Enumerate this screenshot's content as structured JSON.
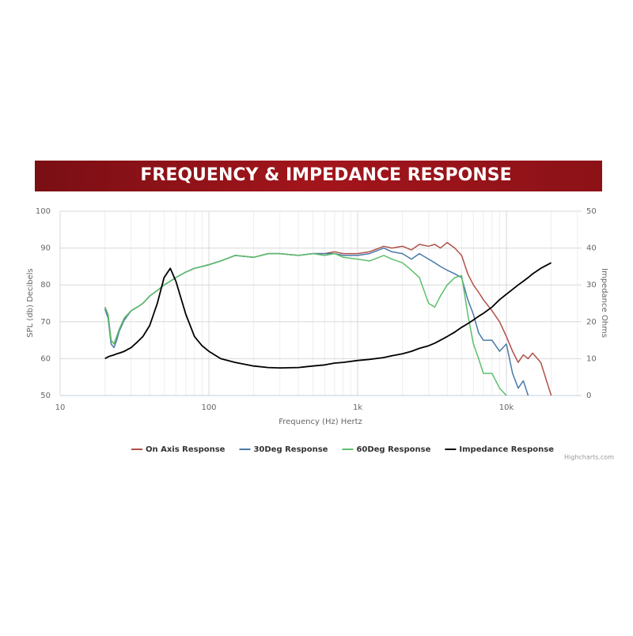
{
  "chart_data": {
    "type": "line",
    "title": "FREQUENCY & IMPEDANCE RESPONSE",
    "xlabel": "Frequency (Hz) Hertz",
    "ylabel": "SPL (db) Decibels",
    "y2label": "Impedance Ohms",
    "credit": "Highcharts.com",
    "xscale": "log",
    "xlim": [
      10,
      32000
    ],
    "xticks": [
      10,
      100,
      {
        "value": 1000,
        "label": "1k"
      },
      {
        "value": 10000,
        "label": "10k"
      }
    ],
    "xminorticks": [
      20,
      30,
      40,
      50,
      60,
      70,
      80,
      90,
      200,
      300,
      400,
      500,
      600,
      700,
      800,
      900,
      2000,
      3000,
      4000,
      5000,
      6000,
      7000,
      8000,
      9000,
      20000,
      30000
    ],
    "ylim": [
      50,
      100
    ],
    "yticks": [
      50,
      60,
      70,
      80,
      90,
      100
    ],
    "y2lim": [
      0,
      50
    ],
    "y2ticks": [
      0,
      10,
      20,
      30,
      40,
      50
    ],
    "grid": true,
    "legend": "bottom",
    "x": [
      20,
      21,
      22,
      23,
      24,
      25,
      27,
      30,
      33,
      36,
      40,
      45,
      50,
      55,
      60,
      70,
      80,
      90,
      100,
      120,
      150,
      200,
      250,
      300,
      400,
      500,
      600,
      700,
      800,
      1000,
      1200,
      1500,
      1700,
      2000,
      2300,
      2600,
      3000,
      3300,
      3600,
      4000,
      4500,
      5000,
      5500,
      6000,
      6500,
      7000,
      8000,
      9000,
      10000,
      11000,
      12000,
      13000,
      14000,
      15000,
      17000,
      20000
    ],
    "series": [
      {
        "name": "On Axis Response",
        "color": "#b0504c",
        "values": [
          74,
          72,
          65,
          64,
          66,
          68,
          71,
          73,
          74,
          75,
          77,
          78.5,
          80,
          81,
          82,
          83.5,
          84.5,
          85,
          85.5,
          86.5,
          88,
          87.5,
          88.5,
          88.5,
          88,
          88.5,
          88.5,
          89,
          88.5,
          88.5,
          89,
          90.5,
          90,
          90.5,
          89.5,
          91,
          90.5,
          91,
          90,
          91.5,
          90,
          88,
          83,
          80,
          78,
          76,
          73,
          70,
          66,
          62,
          59,
          61,
          60,
          61.5,
          59,
          50
        ]
      },
      {
        "name": "30Deg Response",
        "color": "#4a79a8",
        "values": [
          73.5,
          71,
          64,
          63,
          65,
          67.5,
          70.5,
          73,
          74,
          75,
          77,
          78.5,
          80,
          81,
          82,
          83.5,
          84.5,
          85,
          85.5,
          86.5,
          88,
          87.5,
          88.5,
          88.5,
          88,
          88.5,
          88.5,
          88.5,
          88,
          88,
          88.5,
          90,
          89,
          88.5,
          87,
          88.5,
          87,
          86,
          85,
          84,
          83,
          82,
          76,
          72,
          67,
          65,
          65,
          62,
          64,
          56,
          52,
          54,
          50,
          null,
          null,
          null
        ]
      },
      {
        "name": "60Deg Response",
        "color": "#5cbf6b",
        "values": [
          74,
          72,
          65,
          64,
          66,
          68,
          71,
          73,
          74,
          75,
          77,
          78.5,
          80,
          81,
          82,
          83.5,
          84.5,
          85,
          85.5,
          86.5,
          88,
          87.5,
          88.5,
          88.5,
          88,
          88.5,
          88,
          88.5,
          87.5,
          87,
          86.5,
          88,
          87,
          86,
          84,
          82,
          75,
          74,
          77,
          80,
          82,
          82.5,
          72,
          64,
          60,
          56,
          56,
          52,
          50,
          null,
          null,
          null,
          null,
          null,
          null,
          null
        ]
      },
      {
        "name": "Impedance Response",
        "color": "#000000",
        "axis": "y2",
        "values": [
          10,
          10.5,
          10.8,
          11,
          11.3,
          11.5,
          12,
          13,
          14.5,
          16,
          19,
          25,
          32,
          34.5,
          31,
          22,
          16,
          13.5,
          12,
          10,
          9,
          8,
          7.6,
          7.5,
          7.6,
          8,
          8.3,
          8.8,
          9,
          9.5,
          9.8,
          10.3,
          10.8,
          11.3,
          12,
          12.8,
          13.5,
          14.2,
          15,
          16,
          17.2,
          18.5,
          19.5,
          20.5,
          21.5,
          22.3,
          24,
          26,
          27.5,
          28.8,
          30,
          31,
          32,
          33,
          34.5,
          36
        ]
      }
    ]
  }
}
